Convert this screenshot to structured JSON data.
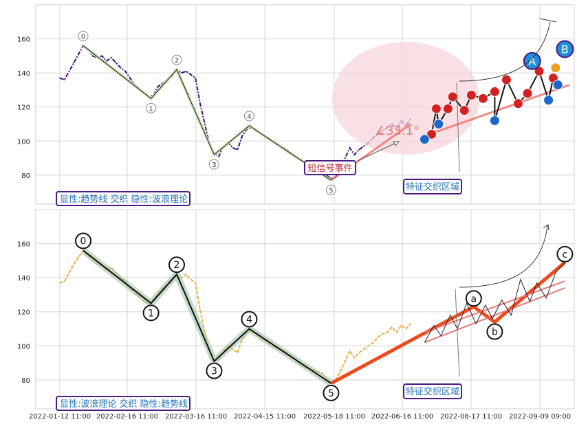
{
  "x_ticks": [
    "2022-01-12 11:00",
    "2022-02-16 11:00",
    "2022-03-16 11:00",
    "2022-04-15 11:00",
    "2022-05-18 11:00",
    "2022-06-16 11:00",
    "2022-08-17 11:00",
    "2022-09-09 09:00"
  ],
  "chart_data": [
    {
      "type": "line",
      "ylim": [
        63,
        180
      ],
      "y_ticks": [
        80,
        100,
        120,
        140,
        160
      ],
      "grid": true,
      "title": "",
      "xlabel": "",
      "ylabel": "",
      "legend_text": "显性:趋势线 交织 隐性:波浪理论",
      "colors": {
        "price": "#3d0a7a",
        "box_border": "#4b1a83",
        "box_text": "#1f6fb8",
        "event_text": "#c0303a",
        "angle_text": "#e87878",
        "zone_fill": "#f7d3d8"
      },
      "price_series": [
        [
          0,
          137
        ],
        [
          2,
          136
        ],
        [
          4,
          141
        ],
        [
          6,
          146
        ],
        [
          8,
          151
        ],
        [
          10,
          156
        ],
        [
          12,
          154
        ],
        [
          14,
          150
        ],
        [
          16,
          149
        ],
        [
          18,
          150
        ],
        [
          20,
          147
        ],
        [
          22,
          149
        ],
        [
          24,
          146
        ],
        [
          26,
          143
        ],
        [
          28,
          141
        ],
        [
          30,
          137
        ],
        [
          32,
          133
        ],
        [
          34,
          131
        ],
        [
          36,
          128
        ],
        [
          38,
          126
        ],
        [
          40,
          127
        ],
        [
          42,
          132
        ],
        [
          44,
          134
        ],
        [
          46,
          136
        ],
        [
          48,
          138
        ],
        [
          50,
          142
        ],
        [
          52,
          140
        ],
        [
          54,
          141
        ],
        [
          56,
          139
        ],
        [
          58,
          137
        ],
        [
          60,
          122
        ],
        [
          62,
          110
        ],
        [
          64,
          98
        ],
        [
          66,
          93
        ],
        [
          68,
          91
        ],
        [
          70,
          97
        ],
        [
          72,
          99
        ],
        [
          74,
          96
        ],
        [
          76,
          95
        ],
        [
          78,
          103
        ],
        [
          80,
          107
        ],
        [
          82,
          108
        ],
        [
          84,
          107
        ],
        [
          86,
          104
        ],
        [
          88,
          103
        ],
        [
          90,
          101
        ],
        [
          92,
          99
        ],
        [
          94,
          97
        ],
        [
          96,
          96
        ],
        [
          98,
          94
        ],
        [
          100,
          92
        ],
        [
          102,
          90
        ],
        [
          104,
          88
        ],
        [
          106,
          86
        ],
        [
          108,
          86
        ],
        [
          110,
          84
        ],
        [
          112,
          83
        ],
        [
          114,
          80
        ],
        [
          116,
          78
        ],
        [
          118,
          79
        ],
        [
          120,
          85
        ],
        [
          122,
          90
        ],
        [
          124,
          96
        ],
        [
          126,
          92
        ],
        [
          128,
          95
        ],
        [
          130,
          97
        ],
        [
          132,
          99
        ],
        [
          134,
          102
        ],
        [
          136,
          104
        ],
        [
          138,
          106
        ],
        [
          140,
          108
        ],
        [
          142,
          110
        ],
        [
          144,
          107
        ],
        [
          146,
          112
        ],
        [
          148,
          109
        ],
        [
          150,
          113
        ]
      ],
      "waves": {
        "points": [
          {
            "label": "0",
            "x": 10,
            "y": 156
          },
          {
            "label": "1",
            "x": 39,
            "y": 125
          },
          {
            "label": "2",
            "x": 50,
            "y": 142
          },
          {
            "label": "3",
            "x": 66,
            "y": 92
          },
          {
            "label": "4",
            "x": 81,
            "y": 109
          },
          {
            "label": "5",
            "x": 116,
            "y": 77
          }
        ],
        "color": "#222222"
      },
      "short_signal_label": "短信号事件",
      "angle_label": "∠33.1°",
      "zone_label": "特征交织区域",
      "big_markers": [
        {
          "label": "A",
          "x": 202,
          "y": 147
        },
        {
          "label": "B",
          "x": 216,
          "y": 154
        }
      ],
      "trend_lines": [
        {
          "from": [
            116,
            77
          ],
          "to": [
            150,
            110
          ]
        },
        {
          "from": [
            156,
            103
          ],
          "to": [
            218,
            133
          ]
        }
      ],
      "buy_markers": [
        {
          "x": 156,
          "y": 101
        },
        {
          "x": 162,
          "y": 110
        },
        {
          "x": 186,
          "y": 112
        },
        {
          "x": 209,
          "y": 124
        },
        {
          "x": 213,
          "y": 133
        }
      ],
      "sell_markers": [
        {
          "x": 159,
          "y": 104
        },
        {
          "x": 161,
          "y": 119
        },
        {
          "x": 166,
          "y": 119
        },
        {
          "x": 168,
          "y": 126
        },
        {
          "x": 173,
          "y": 118
        },
        {
          "x": 176,
          "y": 127
        },
        {
          "x": 181,
          "y": 125
        },
        {
          "x": 186,
          "y": 129
        },
        {
          "x": 191,
          "y": 136
        },
        {
          "x": 196,
          "y": 122
        },
        {
          "x": 200,
          "y": 128
        },
        {
          "x": 205,
          "y": 141
        },
        {
          "x": 211,
          "y": 137
        }
      ],
      "orange_markers": [
        {
          "x": 212,
          "y": 143
        }
      ]
    },
    {
      "type": "line",
      "ylim": [
        63,
        180
      ],
      "y_ticks": [
        80,
        100,
        120,
        140,
        160
      ],
      "grid": true,
      "title": "",
      "xlabel": "",
      "ylabel": "",
      "legend_text": "显性:波浪理论 交织 隐性:趋势线",
      "colors": {
        "price": "#e8b040",
        "box_border": "#4b1a83",
        "box_text": "#1f6fb8",
        "wave_main": "#0e0e0e",
        "wave_halo": "#9ec5a8",
        "correction": "#ee4a1d",
        "trend": "#e87878"
      },
      "price_series": [
        [
          0,
          137
        ],
        [
          2,
          138
        ],
        [
          4,
          143
        ],
        [
          6,
          148
        ],
        [
          8,
          152
        ],
        [
          10,
          156
        ],
        [
          12,
          153
        ],
        [
          14,
          150
        ],
        [
          16,
          148
        ],
        [
          18,
          147
        ],
        [
          20,
          145
        ],
        [
          22,
          146
        ],
        [
          24,
          143
        ],
        [
          26,
          140
        ],
        [
          28,
          138
        ],
        [
          30,
          134
        ],
        [
          32,
          131
        ],
        [
          34,
          129
        ],
        [
          36,
          126
        ],
        [
          38,
          124
        ],
        [
          40,
          127
        ],
        [
          42,
          131
        ],
        [
          44,
          134
        ],
        [
          46,
          136
        ],
        [
          48,
          139
        ],
        [
          50,
          141
        ],
        [
          52,
          140
        ],
        [
          54,
          142
        ],
        [
          56,
          139
        ],
        [
          58,
          137
        ],
        [
          60,
          121
        ],
        [
          62,
          108
        ],
        [
          64,
          97
        ],
        [
          66,
          91
        ],
        [
          68,
          92
        ],
        [
          70,
          97
        ],
        [
          72,
          100
        ],
        [
          74,
          98
        ],
        [
          76,
          96
        ],
        [
          78,
          104
        ],
        [
          80,
          108
        ],
        [
          82,
          109
        ],
        [
          84,
          107
        ],
        [
          86,
          104
        ],
        [
          88,
          103
        ],
        [
          90,
          101
        ],
        [
          92,
          99
        ],
        [
          94,
          98
        ],
        [
          96,
          97
        ],
        [
          98,
          95
        ],
        [
          100,
          93
        ],
        [
          102,
          90
        ],
        [
          104,
          88
        ],
        [
          106,
          87
        ],
        [
          108,
          86
        ],
        [
          110,
          85
        ],
        [
          112,
          84
        ],
        [
          114,
          81
        ],
        [
          116,
          78
        ],
        [
          118,
          80
        ],
        [
          120,
          85
        ],
        [
          122,
          91
        ],
        [
          124,
          97
        ],
        [
          126,
          93
        ],
        [
          128,
          96
        ],
        [
          130,
          98
        ],
        [
          132,
          100
        ],
        [
          134,
          102
        ],
        [
          136,
          105
        ],
        [
          138,
          107
        ],
        [
          140,
          108
        ],
        [
          142,
          111
        ],
        [
          144,
          108
        ],
        [
          146,
          112
        ],
        [
          148,
          110
        ],
        [
          150,
          113
        ]
      ],
      "waves": {
        "points": [
          {
            "label": "0",
            "x": 10,
            "y": 156
          },
          {
            "label": "1",
            "x": 39,
            "y": 125
          },
          {
            "label": "2",
            "x": 50,
            "y": 142
          },
          {
            "label": "3",
            "x": 66,
            "y": 91
          },
          {
            "label": "4",
            "x": 81,
            "y": 110
          },
          {
            "label": "5",
            "x": 116,
            "y": 78
          }
        ],
        "correction": [
          {
            "label": "a",
            "x": 177,
            "y": 123
          },
          {
            "label": "b",
            "x": 186,
            "y": 114
          },
          {
            "label": "c",
            "x": 216,
            "y": 149
          }
        ]
      },
      "zone_label": "特征交织区域",
      "trend_lines": [
        {
          "from": [
            156,
            102
          ],
          "to": [
            216,
            134
          ]
        },
        {
          "from": [
            156,
            108
          ],
          "to": [
            216,
            138
          ]
        }
      ],
      "zigzag": [
        [
          156,
          102
        ],
        [
          160,
          112
        ],
        [
          163,
          106
        ],
        [
          167,
          118
        ],
        [
          170,
          110
        ],
        [
          174,
          125
        ],
        [
          178,
          113
        ],
        [
          182,
          124
        ],
        [
          185,
          116
        ],
        [
          189,
          127
        ],
        [
          193,
          118
        ],
        [
          197,
          139
        ],
        [
          201,
          126
        ],
        [
          204,
          137
        ],
        [
          208,
          128
        ],
        [
          212,
          143
        ],
        [
          216,
          149
        ]
      ]
    }
  ]
}
